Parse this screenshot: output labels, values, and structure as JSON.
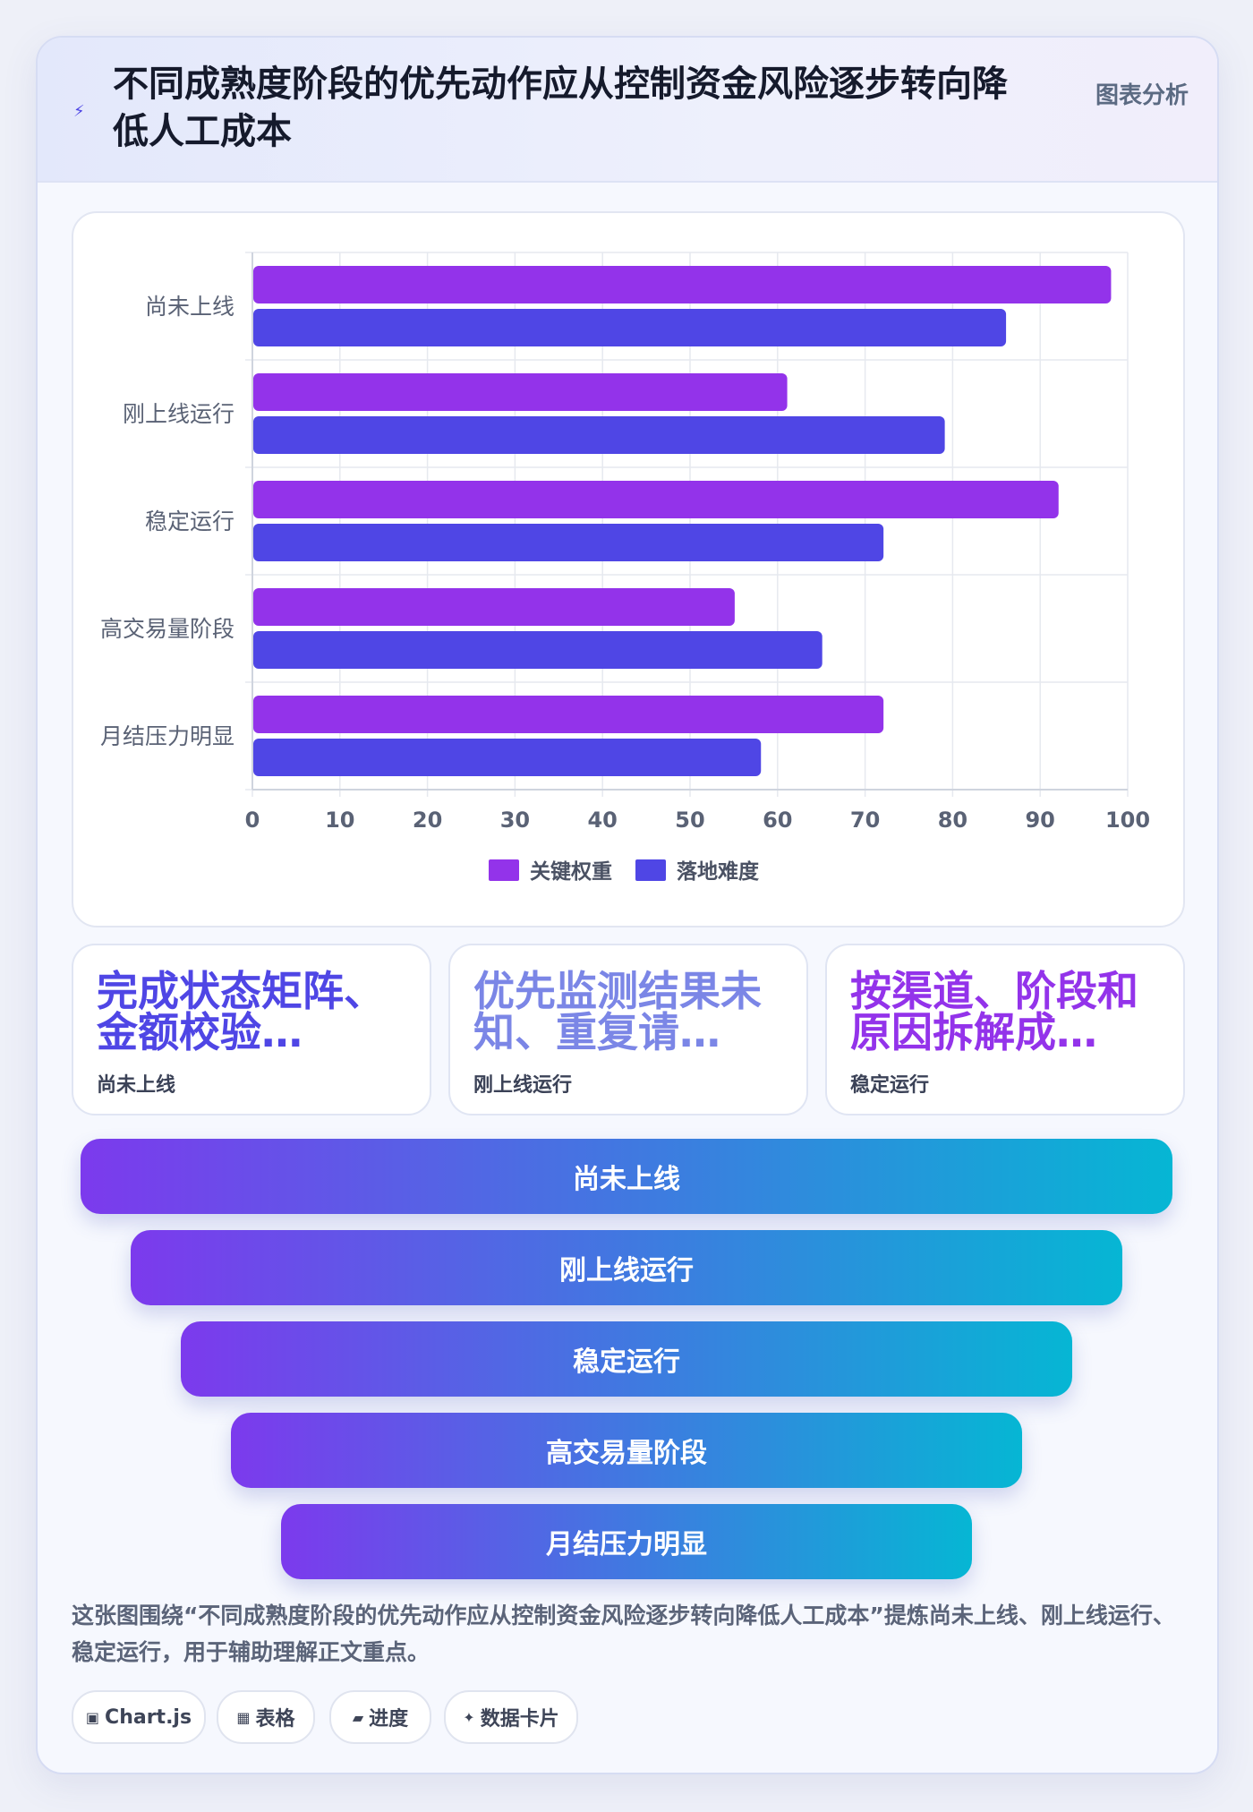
{
  "header": {
    "icon": "bolt-icon",
    "title": "不同成熟度阶段的优先动作应从控制资金风险逐步转向降低人工成本",
    "tag": "图表分析"
  },
  "chart_data": {
    "type": "bar",
    "orientation": "horizontal",
    "categories": [
      "尚未上线",
      "刚上线运行",
      "稳定运行",
      "高交易量阶段",
      "月结压力明显"
    ],
    "series": [
      {
        "name": "关键权重",
        "values": [
          98,
          61,
          92,
          55,
          72
        ],
        "color": "#9333ea"
      },
      {
        "name": "落地难度",
        "values": [
          86,
          79,
          72,
          65,
          58
        ],
        "color": "#4f46e5"
      }
    ],
    "xlim": [
      0,
      100
    ],
    "xticks": [
      "0",
      "10",
      "20",
      "30",
      "40",
      "50",
      "60",
      "70",
      "80",
      "90",
      "100"
    ],
    "grid": true,
    "legend_position": "bottom"
  },
  "stats": [
    {
      "value": "完成状态矩阵、金额校验…",
      "label": "尚未上线",
      "color": "#4f46e5"
    },
    {
      "value": "优先监测结果未知、重复请…",
      "label": "刚上线运行",
      "color": "#7b86e6"
    },
    {
      "value": "按渠道、阶段和原因拆解成…",
      "label": "稳定运行",
      "color": "#9333ea"
    }
  ],
  "funnel": [
    "尚未上线",
    "刚上线运行",
    "稳定运行",
    "高交易量阶段",
    "月结压力明显"
  ],
  "description": "这张图围绕“不同成熟度阶段的优先动作应从控制资金风险逐步转向降低人工成本”提炼尚未上线、刚上线运行、稳定运行，用于辅助理解正文重点。",
  "chips": [
    {
      "icon": "▣",
      "label": "Chart.js"
    },
    {
      "icon": "▦",
      "label": "表格"
    },
    {
      "icon": "▰",
      "label": "进度"
    },
    {
      "icon": "✦",
      "label": "数据卡片"
    }
  ]
}
